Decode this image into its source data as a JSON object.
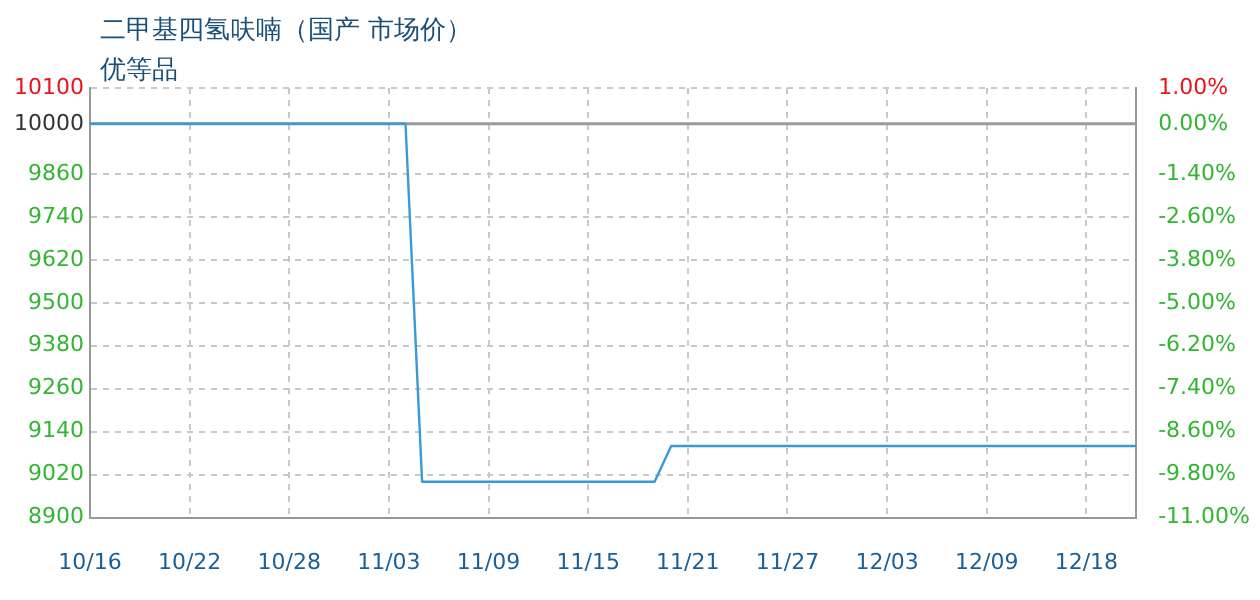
{
  "chart_data": {
    "type": "line",
    "title": "二甲基四氢呋喃（国产 市场价）",
    "subtitle": "优等品",
    "categories": [
      "10/16",
      null,
      null,
      null,
      null,
      null,
      "10/22",
      null,
      null,
      null,
      null,
      null,
      "10/28",
      null,
      null,
      null,
      null,
      null,
      "11/03",
      null,
      null,
      null,
      null,
      null,
      "11/09",
      null,
      null,
      null,
      null,
      null,
      "11/15",
      null,
      null,
      null,
      null,
      null,
      "11/21",
      null,
      null,
      null,
      null,
      null,
      "11/27",
      null,
      null,
      null,
      null,
      null,
      "12/03",
      null,
      null,
      null,
      null,
      null,
      "12/09",
      null,
      null,
      null,
      null,
      null,
      "12/18",
      null,
      null,
      null
    ],
    "series": [
      {
        "color": "#3a9ad9",
        "values": [
          10000,
          10000,
          10000,
          10000,
          10000,
          10000,
          10000,
          10000,
          10000,
          10000,
          10000,
          10000,
          10000,
          10000,
          10000,
          10000,
          10000,
          10000,
          10000,
          10000,
          9000,
          9000,
          9000,
          9000,
          9000,
          9000,
          9000,
          9000,
          9000,
          9000,
          9000,
          9000,
          9000,
          9000,
          9000,
          9100,
          9100,
          9100,
          9100,
          9100,
          9100,
          9100,
          9100,
          9100,
          9100,
          9100,
          9100,
          9100,
          9100,
          9100,
          9100,
          9100,
          9100,
          9100,
          9100,
          9100,
          9100,
          9100,
          9100,
          9100,
          9100,
          9100,
          9100,
          9100
        ]
      }
    ],
    "ylim": [
      8900,
      10100
    ],
    "yticks": [
      8900,
      9020,
      9140,
      9260,
      9380,
      9500,
      9620,
      9740,
      9860,
      10000,
      10100
    ],
    "y2lim": [
      -11,
      1
    ],
    "y2ticks": [
      {
        "value": -11,
        "label": "-11.00%"
      },
      {
        "value": -9.8,
        "label": "-9.80%"
      },
      {
        "value": -8.6,
        "label": "-8.60%"
      },
      {
        "value": -7.4,
        "label": "-7.40%"
      },
      {
        "value": -6.2,
        "label": "-6.20%"
      },
      {
        "value": -5,
        "label": "-5.00%"
      },
      {
        "value": -3.8,
        "label": "-3.80%"
      },
      {
        "value": -2.6,
        "label": "-2.60%"
      },
      {
        "value": -1.4,
        "label": "-1.40%"
      },
      {
        "value": 0,
        "label": "0.00%"
      },
      {
        "value": 1,
        "label": "1.00%"
      }
    ],
    "ref_lines": [
      {
        "axis": "y",
        "value": 10000,
        "color": "#999999"
      }
    ],
    "grid": true,
    "legend": false,
    "marker": "none",
    "line_style": "solid"
  }
}
